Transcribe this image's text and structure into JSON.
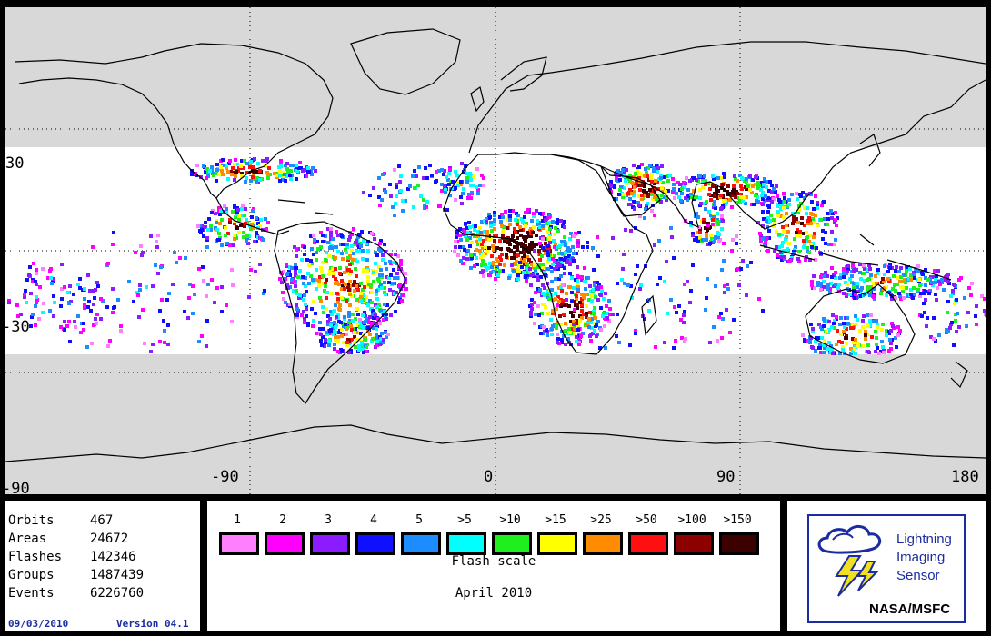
{
  "map": {
    "lat_labels": [
      "30",
      "-30",
      "-90"
    ],
    "lon_labels": [
      "-90",
      "0",
      "90",
      "180"
    ],
    "colors": {
      "ocean": "#ffffff",
      "outside_band": "#d8d8d8",
      "coast": "#000000"
    }
  },
  "stats": {
    "rows": [
      {
        "label": "Orbits",
        "value": "467"
      },
      {
        "label": "Areas",
        "value": "24672"
      },
      {
        "label": "Flashes",
        "value": "142346"
      },
      {
        "label": "Groups",
        "value": "1487439"
      },
      {
        "label": "Events",
        "value": "6226760"
      }
    ],
    "date": "09/03/2010",
    "version": "Version 04.1"
  },
  "legend": {
    "bins": [
      {
        "label": "1",
        "color": "#ff80ff"
      },
      {
        "label": "2",
        "color": "#ff00ff"
      },
      {
        "label": "3",
        "color": "#8c1cff"
      },
      {
        "label": "4",
        "color": "#1010ff"
      },
      {
        "label": "5",
        "color": "#1c8cff"
      },
      {
        "label": ">5",
        "color": "#00ffff"
      },
      {
        "label": ">10",
        "color": "#1ef01e"
      },
      {
        "label": ">15",
        "color": "#ffff00"
      },
      {
        "label": ">25",
        "color": "#ff8c00"
      },
      {
        "label": ">50",
        "color": "#ff1010"
      },
      {
        "label": ">100",
        "color": "#8c0000"
      },
      {
        "label": ">150",
        "color": "#3c0000"
      }
    ],
    "caption": "Flash scale",
    "month": "April 2010"
  },
  "logo": {
    "lines": [
      "Lightning",
      "Imaging",
      "Sensor"
    ],
    "org": "NASA/MSFC",
    "icon": "lightning-cloud-icon"
  }
}
